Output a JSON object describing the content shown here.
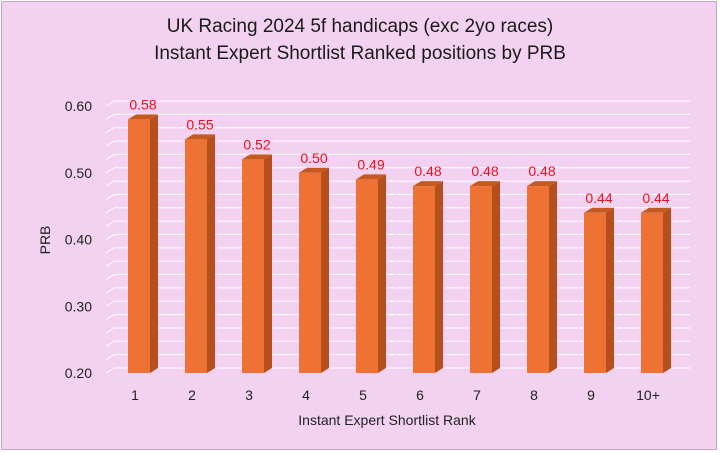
{
  "chart_data": {
    "type": "bar",
    "title": "UK Racing 2024 5f handicaps (exc 2yo races)",
    "subtitle": "Instant Expert Shortlist Ranked positions by PRB",
    "xlabel": "Instant Expert Shortlist Rank",
    "ylabel": "PRB",
    "ylim": [
      0.2,
      0.6
    ],
    "yticks": [
      "0.20",
      "0.30",
      "0.40",
      "0.50",
      "0.60"
    ],
    "categories": [
      "1",
      "2",
      "3",
      "4",
      "5",
      "6",
      "7",
      "8",
      "9",
      "10+"
    ],
    "values": [
      0.58,
      0.55,
      0.52,
      0.5,
      0.49,
      0.48,
      0.48,
      0.48,
      0.44,
      0.44
    ],
    "data_labels": [
      "0.58",
      "0.55",
      "0.52",
      "0.50",
      "0.49",
      "0.48",
      "0.48",
      "0.48",
      "0.44",
      "0.44"
    ],
    "grid": true,
    "legend": "none",
    "colors": {
      "bar_front": "#ed7233",
      "bar_side": "#b5501c",
      "bar_top": "#c45a22",
      "data_label": "#e8131a",
      "background": "#f3d1f0"
    }
  }
}
